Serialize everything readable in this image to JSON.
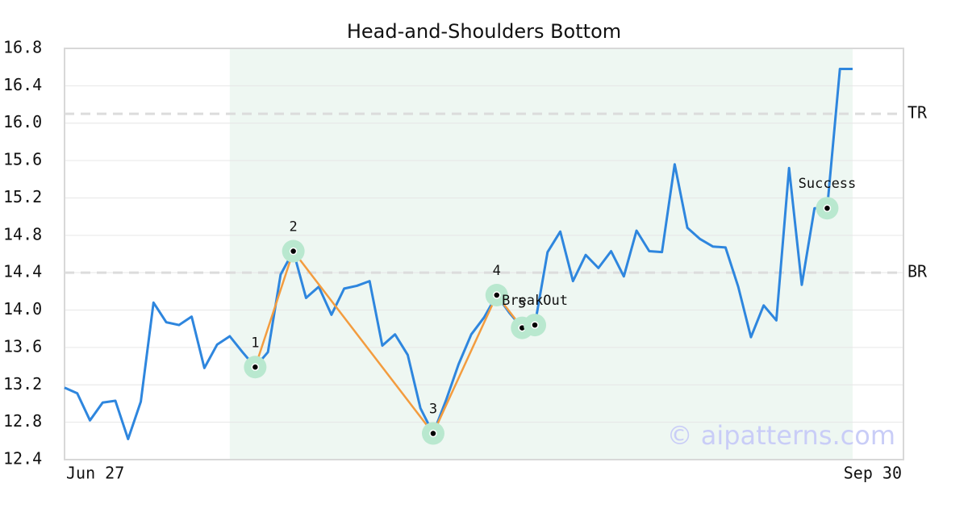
{
  "chart_data": {
    "type": "line",
    "title": "Head-and-Shoulders Bottom",
    "x": [
      0,
      1,
      2,
      3,
      4,
      5,
      6,
      7,
      8,
      9,
      10,
      11,
      12,
      13,
      14,
      15,
      16,
      17,
      18,
      19,
      20,
      21,
      22,
      23,
      24,
      25,
      26,
      27,
      28,
      29,
      30,
      31,
      32,
      33,
      34,
      35,
      36,
      37,
      38,
      39,
      40,
      41,
      42,
      43,
      44,
      45,
      46,
      47,
      48,
      49,
      50,
      51,
      52,
      53,
      54,
      55,
      56,
      57,
      58,
      59,
      60,
      61,
      62
    ],
    "series": [
      {
        "color": "#2e86de",
        "values": [
          13.17,
          13.11,
          12.82,
          13.01,
          13.03,
          12.62,
          13.02,
          14.08,
          13.87,
          13.84,
          13.93,
          13.38,
          13.63,
          13.72,
          13.55,
          13.39,
          13.55,
          14.38,
          14.63,
          14.13,
          14.25,
          13.95,
          14.23,
          14.26,
          14.31,
          13.62,
          13.74,
          13.52,
          12.95,
          12.68,
          13.03,
          13.42,
          13.74,
          13.92,
          14.16,
          13.97,
          13.81,
          13.84,
          14.62,
          14.84,
          14.31,
          14.59,
          14.45,
          14.63,
          14.36,
          14.85,
          14.63,
          14.62,
          15.56,
          14.88,
          14.76,
          14.68,
          14.67,
          14.25,
          13.71,
          14.05,
          13.89,
          15.52,
          14.27,
          15.09,
          15.09,
          16.58,
          16.58
        ]
      }
    ],
    "pattern": {
      "color": "#f39c3f",
      "x": [
        15,
        18,
        29,
        34,
        36
      ],
      "values": [
        13.39,
        14.63,
        12.68,
        14.16,
        13.81
      ],
      "labels": [
        "1",
        "2",
        "3",
        "4",
        "5"
      ]
    },
    "events": [
      {
        "label": "BreakOut",
        "x": 37,
        "value": 13.84
      },
      {
        "label": "Success",
        "x": 60,
        "value": 15.09
      }
    ],
    "levels": [
      {
        "label": "TR",
        "value": 16.1
      },
      {
        "label": "BR",
        "value": 14.4
      }
    ],
    "shade": [
      13,
      62
    ],
    "watermark": "© aipatterns.com",
    "xlim": [
      0,
      66
    ],
    "xticks": [
      {
        "value": 0,
        "label": "Jun 27"
      },
      {
        "value": 66,
        "label": "Sep 30"
      }
    ],
    "ylim": [
      12.4,
      16.8
    ],
    "yticks": [
      12.4,
      12.8,
      13.2,
      13.6,
      {
        "value": 14,
        "label": "14.0"
      },
      14.4,
      14.8,
      15.2,
      15.6,
      {
        "value": 16,
        "label": "16.0"
      },
      16.4,
      16.8
    ],
    "grid": true
  }
}
